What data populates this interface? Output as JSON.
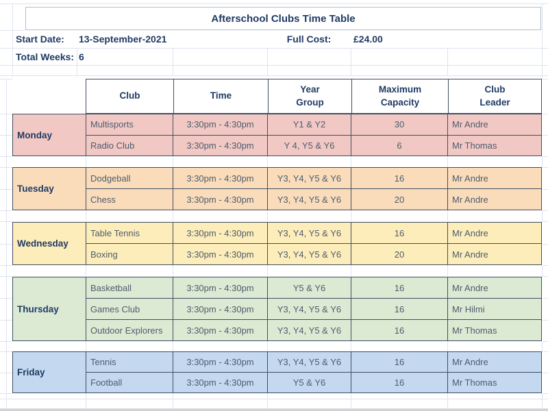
{
  "sheet": {
    "title": "Afterschool Clubs Time Table",
    "info": {
      "start_date_label": "Start Date:",
      "start_date_value": "13-September-2021",
      "full_cost_label": "Full Cost:",
      "full_cost_value": "£24.00",
      "total_weeks_label": "Total Weeks:",
      "total_weeks_value": "6"
    },
    "columns": [
      "Club",
      "Time",
      "Year\nGroup",
      "Maximum\nCapacity",
      "Club\nLeader"
    ],
    "days": [
      {
        "name": "Monday",
        "fill": "#f2c8c4",
        "rows": [
          {
            "club": "Multisports",
            "time": "3:30pm - 4:30pm",
            "year": "Y1 & Y2",
            "capacity": "30",
            "leader": "Mr Andre"
          },
          {
            "club": "Radio Club",
            "time": "3:30pm - 4:30pm",
            "year": "Y 4, Y5 & Y6",
            "capacity": "6",
            "leader": "Mr Thomas"
          }
        ]
      },
      {
        "name": "Tuesday",
        "fill": "#fadcba",
        "rows": [
          {
            "club": "Dodgeball",
            "time": "3:30pm - 4:30pm",
            "year": "Y3, Y4, Y5 & Y6",
            "capacity": "16",
            "leader": "Mr Andre"
          },
          {
            "club": "Chess",
            "time": "3:30pm - 4:30pm",
            "year": "Y3, Y4, Y5 & Y6",
            "capacity": "20",
            "leader": "Mr Andre"
          }
        ]
      },
      {
        "name": "Wednesday",
        "fill": "#fdedba",
        "rows": [
          {
            "club": "Table Tennis",
            "time": "3:30pm - 4:30pm",
            "year": "Y3, Y4, Y5 & Y6",
            "capacity": "16",
            "leader": "Mr Andre"
          },
          {
            "club": "Boxing",
            "time": "3:30pm - 4:30pm",
            "year": "Y3, Y4, Y5 & Y6",
            "capacity": "20",
            "leader": "Mr Andre"
          }
        ]
      },
      {
        "name": "Thursday",
        "fill": "#dcead3",
        "rows": [
          {
            "club": "Basketball",
            "time": "3:30pm - 4:30pm",
            "year": "Y5 & Y6",
            "capacity": "16",
            "leader": "Mr Andre"
          },
          {
            "club": "Games Club",
            "time": "3:30pm - 4:30pm",
            "year": "Y3, Y4, Y5 & Y6",
            "capacity": "16",
            "leader": "Mr Hilmi"
          },
          {
            "club": "Outdoor Explorers",
            "time": "3:30pm - 4:30pm",
            "year": "Y3, Y4, Y5 & Y6",
            "capacity": "16",
            "leader": "Mr Thomas"
          }
        ]
      },
      {
        "name": "Friday",
        "fill": "#c4d8f0",
        "rows": [
          {
            "club": "Tennis",
            "time": "3:30pm - 4:30pm",
            "year": "Y3, Y4, Y5 & Y6",
            "capacity": "16",
            "leader": "Mr Andre"
          },
          {
            "club": "Football",
            "time": "3:30pm - 4:30pm",
            "year": "Y5 & Y6",
            "capacity": "16",
            "leader": "Mr Thomas"
          }
        ]
      }
    ],
    "colors": {
      "heading_text": "#1f3a64",
      "cell_text": "#4d5c6d",
      "table_border": "#3d4d61",
      "gridline": "#dde3ed",
      "title_border": "#b3bfce"
    }
  }
}
